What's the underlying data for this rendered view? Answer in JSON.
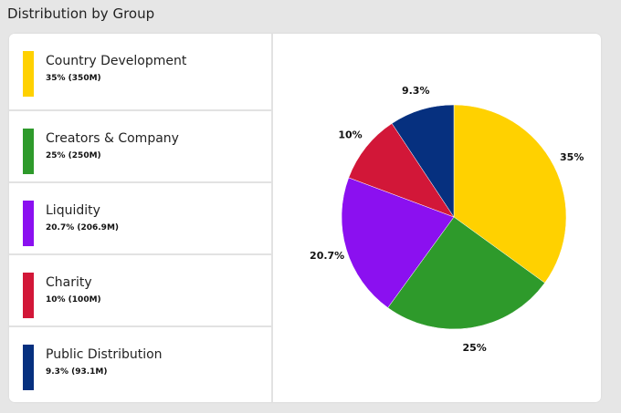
{
  "title": "Distribution by Group",
  "legend": [
    {
      "name": "Country Development",
      "value_text": "35% (350M)",
      "color": "#FFD100"
    },
    {
      "name": "Creators & Company",
      "value_text": "25% (250M)",
      "color": "#2E9A2B"
    },
    {
      "name": "Liquidity",
      "value_text": "20.7% (206.9M)",
      "color": "#8B10F0"
    },
    {
      "name": "Charity",
      "value_text": "10% (100M)",
      "color": "#D21738"
    },
    {
      "name": "Public Distribution",
      "value_text": "9.3% (93.1M)",
      "color": "#06307F"
    }
  ],
  "chart_data": {
    "type": "pie",
    "title": "Distribution by Group",
    "slices": [
      {
        "name": "Country Development",
        "value": 35,
        "label": "35%",
        "color": "#FFD100"
      },
      {
        "name": "Creators & Company",
        "value": 25,
        "label": "25%",
        "color": "#2E9A2B"
      },
      {
        "name": "Liquidity",
        "value": 20.7,
        "label": "20.7%",
        "color": "#8B10F0"
      },
      {
        "name": "Charity",
        "value": 10,
        "label": "10%",
        "color": "#D21738"
      },
      {
        "name": "Public Distribution",
        "value": 9.3,
        "label": "9.3%",
        "color": "#06307F"
      }
    ],
    "start": "top",
    "direction": "clockwise",
    "legend_position": "left"
  }
}
